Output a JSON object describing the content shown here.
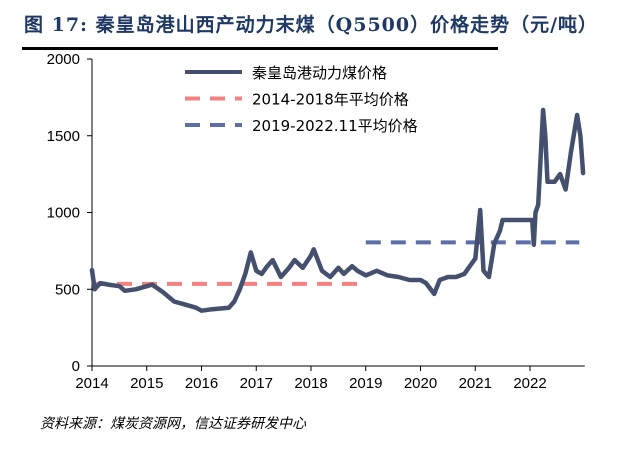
{
  "title": "图 17: 秦皇岛港山西产动力末煤（Q5500）价格走势（元/吨）",
  "source": "资料来源：煤炭资源网，信达证券研发中心",
  "chart_data": {
    "type": "line",
    "title": "",
    "xlabel": "",
    "ylabel": "",
    "xlim": [
      2014,
      2023
    ],
    "ylim": [
      0,
      2000
    ],
    "x_ticks": [
      "2014",
      "2015",
      "2016",
      "2017",
      "2018",
      "2019",
      "2020",
      "2021",
      "2022"
    ],
    "y_ticks": [
      "0",
      "500",
      "1000",
      "1500",
      "2000"
    ],
    "grid": false,
    "legend_position": "top-center",
    "series": [
      {
        "name": "秦皇岛港动力煤价格",
        "color": "#44506e",
        "style": "solid",
        "x": [
          2014.0,
          2014.05,
          2014.15,
          2014.3,
          2014.5,
          2014.6,
          2014.8,
          2015.0,
          2015.1,
          2015.3,
          2015.5,
          2015.7,
          2015.9,
          2016.0,
          2016.2,
          2016.5,
          2016.6,
          2016.7,
          2016.8,
          2016.9,
          2017.0,
          2017.1,
          2017.2,
          2017.3,
          2017.45,
          2017.6,
          2017.7,
          2017.85,
          2018.0,
          2018.05,
          2018.2,
          2018.35,
          2018.5,
          2018.6,
          2018.75,
          2018.85,
          2019.0,
          2019.2,
          2019.4,
          2019.6,
          2019.8,
          2020.0,
          2020.1,
          2020.25,
          2020.35,
          2020.5,
          2020.65,
          2020.8,
          2020.9,
          2021.0,
          2021.09,
          2021.15,
          2021.25,
          2021.35,
          2021.45,
          2021.5,
          2022.04,
          2022.07,
          2022.1,
          2022.15,
          2022.24,
          2022.28,
          2022.32,
          2022.45,
          2022.55,
          2022.65,
          2022.75,
          2022.86,
          2022.92,
          2022.97
        ],
        "y": [
          625,
          500,
          540,
          530,
          520,
          490,
          500,
          520,
          530,
          480,
          420,
          400,
          380,
          360,
          370,
          380,
          420,
          500,
          600,
          740,
          620,
          600,
          650,
          690,
          580,
          640,
          690,
          640,
          720,
          760,
          620,
          580,
          640,
          600,
          650,
          620,
          590,
          620,
          590,
          580,
          560,
          560,
          540,
          470,
          560,
          580,
          580,
          600,
          650,
          700,
          1016,
          620,
          580,
          800,
          880,
          951,
          951,
          790,
          1000,
          1050,
          1668,
          1500,
          1200,
          1200,
          1250,
          1150,
          1400,
          1635,
          1500,
          1257
        ]
      },
      {
        "name": "2014-2018年平均价格",
        "color": "#f4817f",
        "style": "dashed",
        "x": [
          2014,
          2019
        ],
        "y": [
          535,
          535
        ]
      },
      {
        "name": "2019-2022.11平均价格",
        "color": "#5b6ea8",
        "style": "dashed",
        "x": [
          2019,
          2022.9
        ],
        "y": [
          805,
          805
        ]
      }
    ]
  }
}
